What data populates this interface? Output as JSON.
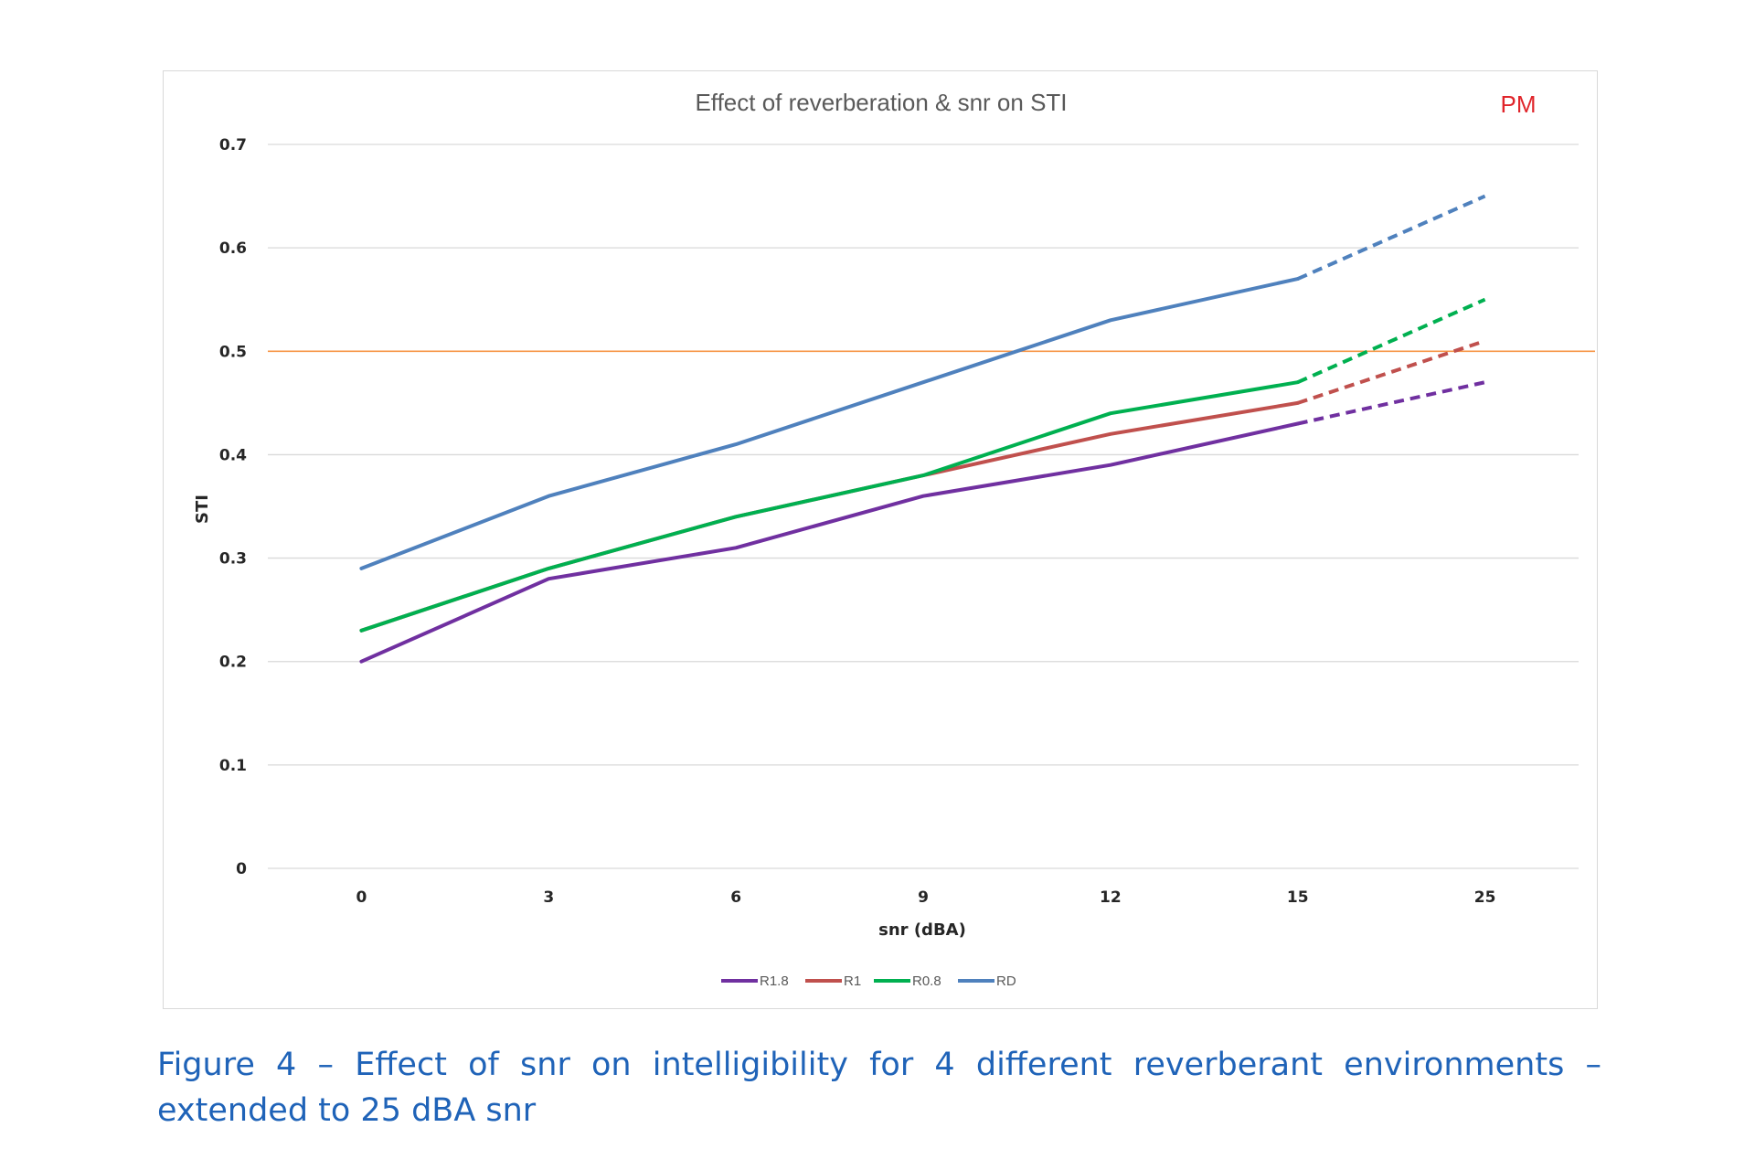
{
  "chart_data": {
    "type": "line",
    "title": "Effect of reverberation & snr on STI",
    "annotation": "PM",
    "xlabel": "snr (dBA)",
    "ylabel": "STI",
    "categories": [
      "0",
      "3",
      "6",
      "9",
      "12",
      "15",
      "25"
    ],
    "ylim": [
      0,
      0.7
    ],
    "yticks": [
      "0",
      "0.1",
      "0.2",
      "0.3",
      "0.4",
      "0.5",
      "0.6",
      "0.7"
    ],
    "grid": true,
    "legend_position": "bottom",
    "dashed_from_category": "15",
    "series": [
      {
        "name": "R1.8",
        "color": "#7030a0",
        "values": [
          0.2,
          0.28,
          0.31,
          0.36,
          0.39,
          0.43,
          0.47
        ]
      },
      {
        "name": "R1",
        "color": "#c0504d",
        "values": [
          0.23,
          0.29,
          0.34,
          0.38,
          0.42,
          0.45,
          0.51
        ]
      },
      {
        "name": "R0.8",
        "color": "#00b050",
        "values": [
          0.23,
          0.29,
          0.34,
          0.38,
          0.44,
          0.47,
          0.55
        ]
      },
      {
        "name": "RD",
        "color": "#4f81bd",
        "values": [
          0.29,
          0.36,
          0.41,
          0.47,
          0.53,
          0.57,
          0.65
        ]
      }
    ],
    "reference_line": {
      "value": 0.5,
      "color": "#f79646"
    }
  },
  "caption": "Figure 4 – Effect of snr on intelligibility for 4 different reverberant environments – extended to 25 dBA snr"
}
